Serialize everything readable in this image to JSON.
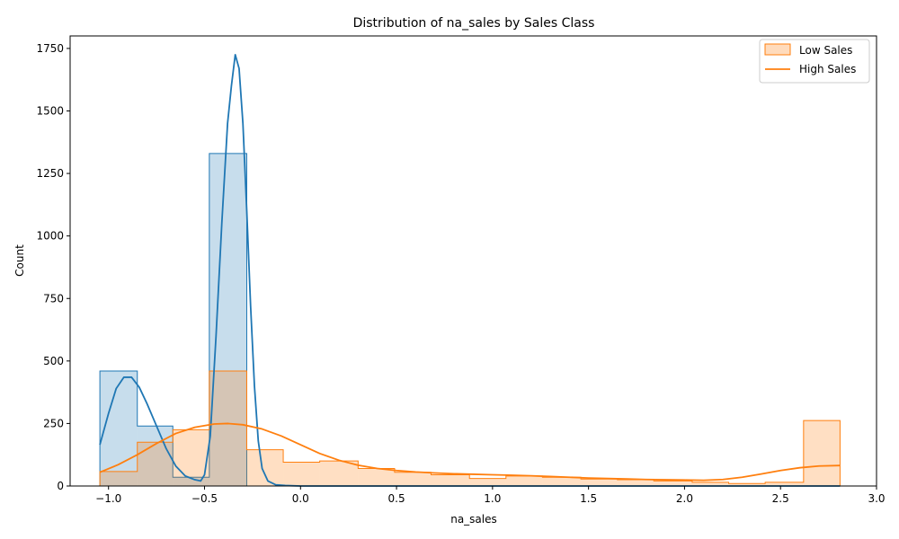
{
  "chart_data": {
    "type": "histogram",
    "title": "Distribution of na_sales by Sales Class",
    "xlabel": "na_sales",
    "ylabel": "Count",
    "xlim": [
      -1.2,
      3.0
    ],
    "ylim": [
      0,
      1800
    ],
    "xticks": [
      -1.0,
      -0.5,
      0.0,
      0.5,
      1.0,
      1.5,
      2.0,
      2.5,
      3.0
    ],
    "xtick_labels": [
      "−1.0",
      "−0.5",
      "0.0",
      "0.5",
      "1.0",
      "1.5",
      "2.0",
      "2.5",
      "3.0"
    ],
    "yticks": [
      0,
      250,
      500,
      750,
      1000,
      1250,
      1500,
      1750
    ],
    "ytick_labels": [
      "0",
      "250",
      "500",
      "750",
      "1000",
      "1250",
      "1500",
      "1750"
    ],
    "legend_position": "top-right",
    "legend": [
      "Low Sales",
      "High Sales"
    ],
    "series": [
      {
        "key": "blue",
        "color": "#1f77b4",
        "bins": [
          {
            "x0": -1.045,
            "x1": -0.85,
            "count": 460
          },
          {
            "x0": -0.85,
            "x1": -0.665,
            "count": 240
          },
          {
            "x0": -0.665,
            "x1": -0.475,
            "count": 35
          },
          {
            "x0": -0.475,
            "x1": -0.28,
            "count": 1330
          },
          {
            "x0": -0.28,
            "x1": 2.81,
            "count": 0
          }
        ],
        "kde": [
          [
            -1.045,
            165
          ],
          [
            -1.0,
            290
          ],
          [
            -0.96,
            390
          ],
          [
            -0.92,
            435
          ],
          [
            -0.88,
            435
          ],
          [
            -0.84,
            395
          ],
          [
            -0.8,
            330
          ],
          [
            -0.75,
            240
          ],
          [
            -0.7,
            150
          ],
          [
            -0.65,
            80
          ],
          [
            -0.6,
            40
          ],
          [
            -0.55,
            25
          ],
          [
            -0.52,
            20
          ],
          [
            -0.5,
            45
          ],
          [
            -0.47,
            200
          ],
          [
            -0.44,
            600
          ],
          [
            -0.41,
            1050
          ],
          [
            -0.38,
            1450
          ],
          [
            -0.36,
            1600
          ],
          [
            -0.34,
            1725
          ],
          [
            -0.32,
            1670
          ],
          [
            -0.3,
            1450
          ],
          [
            -0.28,
            1100
          ],
          [
            -0.26,
            720
          ],
          [
            -0.24,
            400
          ],
          [
            -0.22,
            180
          ],
          [
            -0.2,
            70
          ],
          [
            -0.17,
            20
          ],
          [
            -0.13,
            5
          ],
          [
            -0.08,
            2
          ],
          [
            0.0,
            0
          ],
          [
            0.5,
            0
          ],
          [
            1.0,
            0
          ],
          [
            1.5,
            0
          ],
          [
            2.0,
            0
          ],
          [
            2.5,
            0
          ],
          [
            2.81,
            0
          ]
        ]
      },
      {
        "key": "orange",
        "color": "#ff7f0e",
        "bins": [
          {
            "x0": -1.045,
            "x1": -0.85,
            "count": 58
          },
          {
            "x0": -0.85,
            "x1": -0.665,
            "count": 175
          },
          {
            "x0": -0.665,
            "x1": -0.475,
            "count": 225
          },
          {
            "x0": -0.475,
            "x1": -0.28,
            "count": 460
          },
          {
            "x0": -0.28,
            "x1": -0.09,
            "count": 145
          },
          {
            "x0": -0.09,
            "x1": 0.1,
            "count": 95
          },
          {
            "x0": 0.1,
            "x1": 0.3,
            "count": 100
          },
          {
            "x0": 0.3,
            "x1": 0.49,
            "count": 70
          },
          {
            "x0": 0.49,
            "x1": 0.68,
            "count": 55
          },
          {
            "x0": 0.68,
            "x1": 0.88,
            "count": 45
          },
          {
            "x0": 0.88,
            "x1": 1.07,
            "count": 30
          },
          {
            "x0": 1.07,
            "x1": 1.26,
            "count": 40
          },
          {
            "x0": 1.26,
            "x1": 1.46,
            "count": 35
          },
          {
            "x0": 1.46,
            "x1": 1.65,
            "count": 28
          },
          {
            "x0": 1.65,
            "x1": 1.84,
            "count": 25
          },
          {
            "x0": 1.84,
            "x1": 2.04,
            "count": 20
          },
          {
            "x0": 2.04,
            "x1": 2.23,
            "count": 15
          },
          {
            "x0": 2.23,
            "x1": 2.42,
            "count": 10
          },
          {
            "x0": 2.42,
            "x1": 2.62,
            "count": 15
          },
          {
            "x0": 2.62,
            "x1": 2.81,
            "count": 262
          }
        ],
        "kde": [
          [
            -1.045,
            55
          ],
          [
            -0.95,
            85
          ],
          [
            -0.85,
            125
          ],
          [
            -0.75,
            170
          ],
          [
            -0.65,
            210
          ],
          [
            -0.55,
            235
          ],
          [
            -0.45,
            248
          ],
          [
            -0.38,
            250
          ],
          [
            -0.3,
            245
          ],
          [
            -0.2,
            228
          ],
          [
            -0.1,
            200
          ],
          [
            0.0,
            165
          ],
          [
            0.1,
            130
          ],
          [
            0.2,
            103
          ],
          [
            0.3,
            83
          ],
          [
            0.4,
            70
          ],
          [
            0.5,
            62
          ],
          [
            0.6,
            56
          ],
          [
            0.7,
            52
          ],
          [
            0.8,
            49
          ],
          [
            0.9,
            47
          ],
          [
            1.0,
            45
          ],
          [
            1.1,
            43
          ],
          [
            1.2,
            41
          ],
          [
            1.3,
            38
          ],
          [
            1.4,
            35
          ],
          [
            1.5,
            32
          ],
          [
            1.6,
            30
          ],
          [
            1.7,
            28
          ],
          [
            1.8,
            26
          ],
          [
            1.9,
            25
          ],
          [
            2.0,
            24
          ],
          [
            2.1,
            23
          ],
          [
            2.2,
            26
          ],
          [
            2.3,
            35
          ],
          [
            2.4,
            48
          ],
          [
            2.5,
            62
          ],
          [
            2.6,
            73
          ],
          [
            2.7,
            80
          ],
          [
            2.81,
            82
          ]
        ]
      }
    ]
  }
}
